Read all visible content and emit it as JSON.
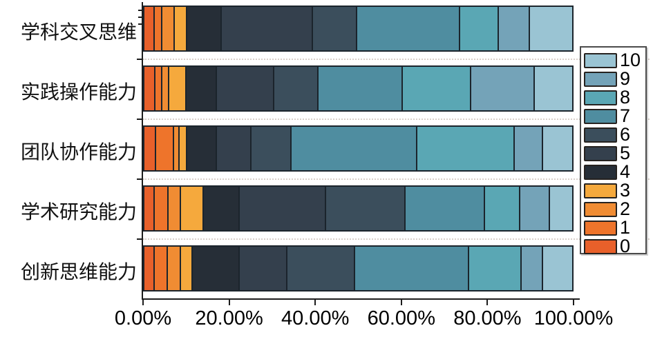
{
  "chart_data": {
    "type": "bar",
    "orientation": "horizontal",
    "stacked": true,
    "title": "",
    "xlabel": "",
    "ylabel": "",
    "xlim": [
      0,
      100
    ],
    "x_tick_labels": [
      "0.00%",
      "20.00%",
      "40.00%",
      "60.00%",
      "80.00%",
      "100.00%"
    ],
    "x_tick_values": [
      0,
      20,
      40,
      60,
      80,
      100
    ],
    "grid": "dotted horizontal separators between bars",
    "legend_position": "right",
    "categories_top_to_bottom": [
      "学科交叉思维",
      "实践操作能力",
      "团队协作能力",
      "学术研究能力",
      "创新思维能力"
    ],
    "series": [
      {
        "name": "0",
        "color": "#e8602a",
        "values": [
          2.2,
          2.3,
          2.5,
          2.2,
          2.2
        ]
      },
      {
        "name": "1",
        "color": "#ee742b",
        "values": [
          1.4,
          1.4,
          4.0,
          3.0,
          2.8
        ]
      },
      {
        "name": "2",
        "color": "#f08c33",
        "values": [
          2.8,
          1.3,
          1.0,
          2.6,
          2.9
        ]
      },
      {
        "name": "3",
        "color": "#f5a93d",
        "values": [
          2.6,
          3.9,
          1.5,
          5.3,
          2.4
        ]
      },
      {
        "name": "4",
        "color": "#262e37",
        "values": [
          8.1,
          7.0,
          6.8,
          8.3,
          11.1
        ]
      },
      {
        "name": "5",
        "color": "#34404d",
        "values": [
          21.7,
          13.4,
          8.1,
          20.5,
          11.1
        ]
      },
      {
        "name": "6",
        "color": "#3b4e5c",
        "values": [
          10.2,
          10.5,
          9.4,
          18.9,
          16.0
        ]
      },
      {
        "name": "7",
        "color": "#4f8da0",
        "values": [
          24.6,
          20.0,
          30.0,
          18.9,
          27.3
        ]
      },
      {
        "name": "8",
        "color": "#5aa7b4",
        "values": [
          9.1,
          16.1,
          23.1,
          8.1,
          12.3
        ]
      },
      {
        "name": "9",
        "color": "#74a3b8",
        "values": [
          7.1,
          15.1,
          6.6,
          6.8,
          4.9
        ]
      },
      {
        "name": "10",
        "color": "#9ac4d3",
        "values": [
          10.2,
          9.0,
          7.0,
          5.4,
          7.0
        ]
      }
    ],
    "legend_entries_top_to_bottom": [
      "10",
      "9",
      "8",
      "7",
      "6",
      "5",
      "4",
      "3",
      "2",
      "1",
      "0"
    ]
  },
  "layout_colors": {
    "axis": "#1c1c1c",
    "segment_border": "#1b242c",
    "grid_dotted": "#d8cfc9",
    "background": "#ffffff"
  }
}
